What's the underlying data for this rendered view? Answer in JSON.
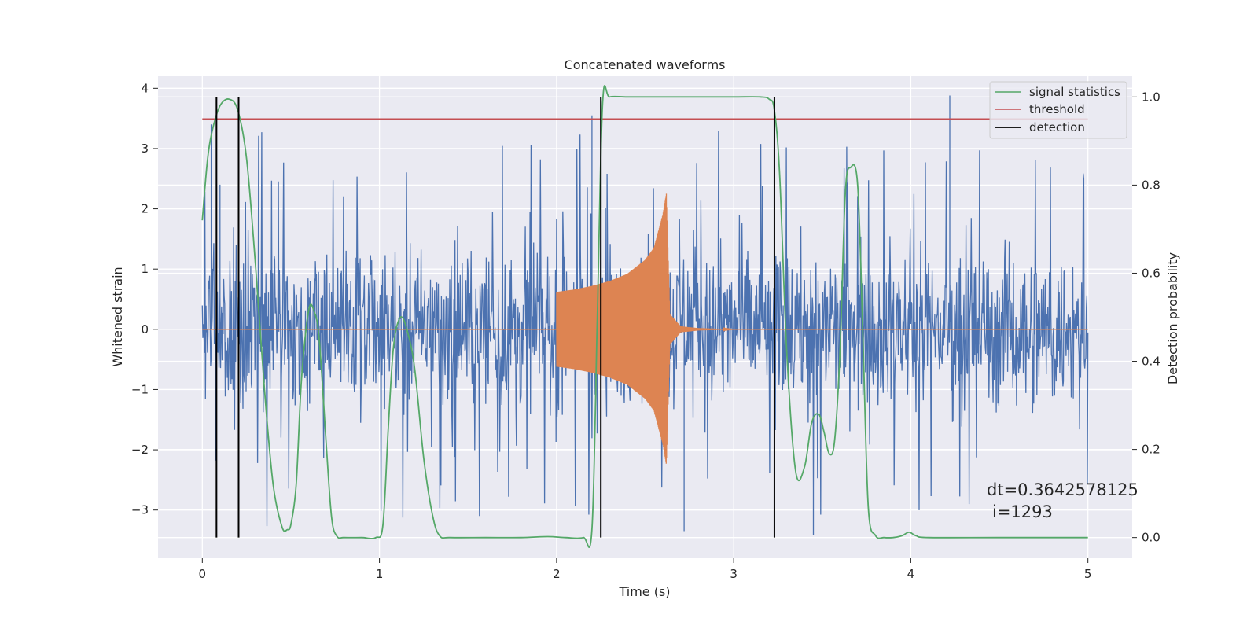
{
  "chart_data": {
    "type": "line",
    "title": "Concatenated waveforms",
    "xlabel": "Time (s)",
    "ylabel": "Whitened strain",
    "y2label": "Detection probability",
    "xlim": [
      -0.25,
      5.25
    ],
    "ylim": [
      -3.8,
      4.2
    ],
    "y2lim": [
      -0.047,
      1.047
    ],
    "xticks": [
      0,
      1,
      2,
      3,
      4,
      5
    ],
    "xtick_labels": [
      "0",
      "1",
      "2",
      "3",
      "4",
      "5"
    ],
    "yticks": [
      -3,
      -2,
      -1,
      0,
      1,
      2,
      3,
      4
    ],
    "ytick_labels": [
      "−3",
      "−2",
      "−1",
      "0",
      "1",
      "2",
      "3",
      "4"
    ],
    "y2ticks": [
      0.0,
      0.2,
      0.4,
      0.6,
      0.8,
      1.0
    ],
    "y2tick_labels": [
      "0.0",
      "0.2",
      "0.4",
      "0.6",
      "0.8",
      "1.0"
    ],
    "grid": true,
    "legend_position": "top-right",
    "background_color": "#eaeaf2",
    "series": [
      {
        "axis": "left",
        "color": "#4c72b0",
        "kind": "noise",
        "x_range": [
          0,
          5
        ],
        "typical_range": [
          -1.6,
          1.6
        ],
        "peak_range": [
          -3.45,
          3.88
        ]
      },
      {
        "axis": "left",
        "color": "#dd8452",
        "kind": "chirp",
        "x": [
          2.0,
          2.1,
          2.2,
          2.3,
          2.4,
          2.5,
          2.55,
          2.6,
          2.62,
          2.64,
          2.7,
          2.8,
          3.0
        ],
        "amplitude": [
          0.62,
          0.66,
          0.72,
          0.8,
          0.92,
          1.15,
          1.35,
          1.9,
          2.25,
          0.25,
          0.05,
          0.02,
          0.0
        ]
      },
      {
        "name": "signal statistics",
        "axis": "right",
        "color": "#55a868",
        "x": [
          0.0,
          0.03,
          0.06,
          0.1,
          0.15,
          0.2,
          0.25,
          0.3,
          0.35,
          0.4,
          0.45,
          0.48,
          0.5,
          0.53,
          0.56,
          0.6,
          0.63,
          0.66,
          0.7,
          0.73,
          0.76,
          0.8,
          0.9,
          0.98,
          1.02,
          1.05,
          1.08,
          1.12,
          1.16,
          1.2,
          1.25,
          1.3,
          1.34,
          1.4,
          1.6,
          1.8,
          1.95,
          2.05,
          2.15,
          2.2,
          2.23,
          2.26,
          2.3,
          2.4,
          2.6,
          2.8,
          3.0,
          3.15,
          3.2,
          3.23,
          3.26,
          3.3,
          3.35,
          3.4,
          3.44,
          3.48,
          3.51,
          3.54,
          3.57,
          3.6,
          3.63,
          3.66,
          3.7,
          3.73,
          3.76,
          3.8,
          3.85,
          3.9,
          3.95,
          3.99,
          4.03,
          4.1,
          4.5,
          5.0
        ],
        "values": [
          0.72,
          0.86,
          0.93,
          0.98,
          0.995,
          0.97,
          0.86,
          0.62,
          0.34,
          0.12,
          0.024,
          0.018,
          0.03,
          0.12,
          0.36,
          0.515,
          0.515,
          0.45,
          0.21,
          0.045,
          0.003,
          0.0,
          0.0,
          0.0,
          0.03,
          0.25,
          0.435,
          0.5,
          0.465,
          0.38,
          0.18,
          0.05,
          0.004,
          0.0,
          0.0,
          0.0,
          0.002,
          0.0,
          0.0,
          0.02,
          0.5,
          0.985,
          1.0,
          1.0,
          1.0,
          1.0,
          1.0,
          1.0,
          0.995,
          0.97,
          0.82,
          0.42,
          0.15,
          0.16,
          0.26,
          0.28,
          0.24,
          0.19,
          0.22,
          0.42,
          0.78,
          0.84,
          0.8,
          0.45,
          0.07,
          0.005,
          0.0,
          0.0,
          0.004,
          0.012,
          0.004,
          0.0,
          0.0,
          0.0
        ]
      },
      {
        "name": "threshold",
        "axis": "right",
        "color": "#c44e52",
        "x": [
          0,
          5
        ],
        "values": [
          0.95,
          0.95
        ]
      },
      {
        "name": "detection",
        "axis": "right",
        "color": "#000000",
        "kind": "vlines",
        "x": [
          0.08,
          0.205,
          2.25,
          3.23
        ],
        "y_range": [
          0.0,
          1.0
        ]
      }
    ],
    "annotation": {
      "line1": "dt=0.3642578125",
      "line2": "i=1293"
    }
  }
}
